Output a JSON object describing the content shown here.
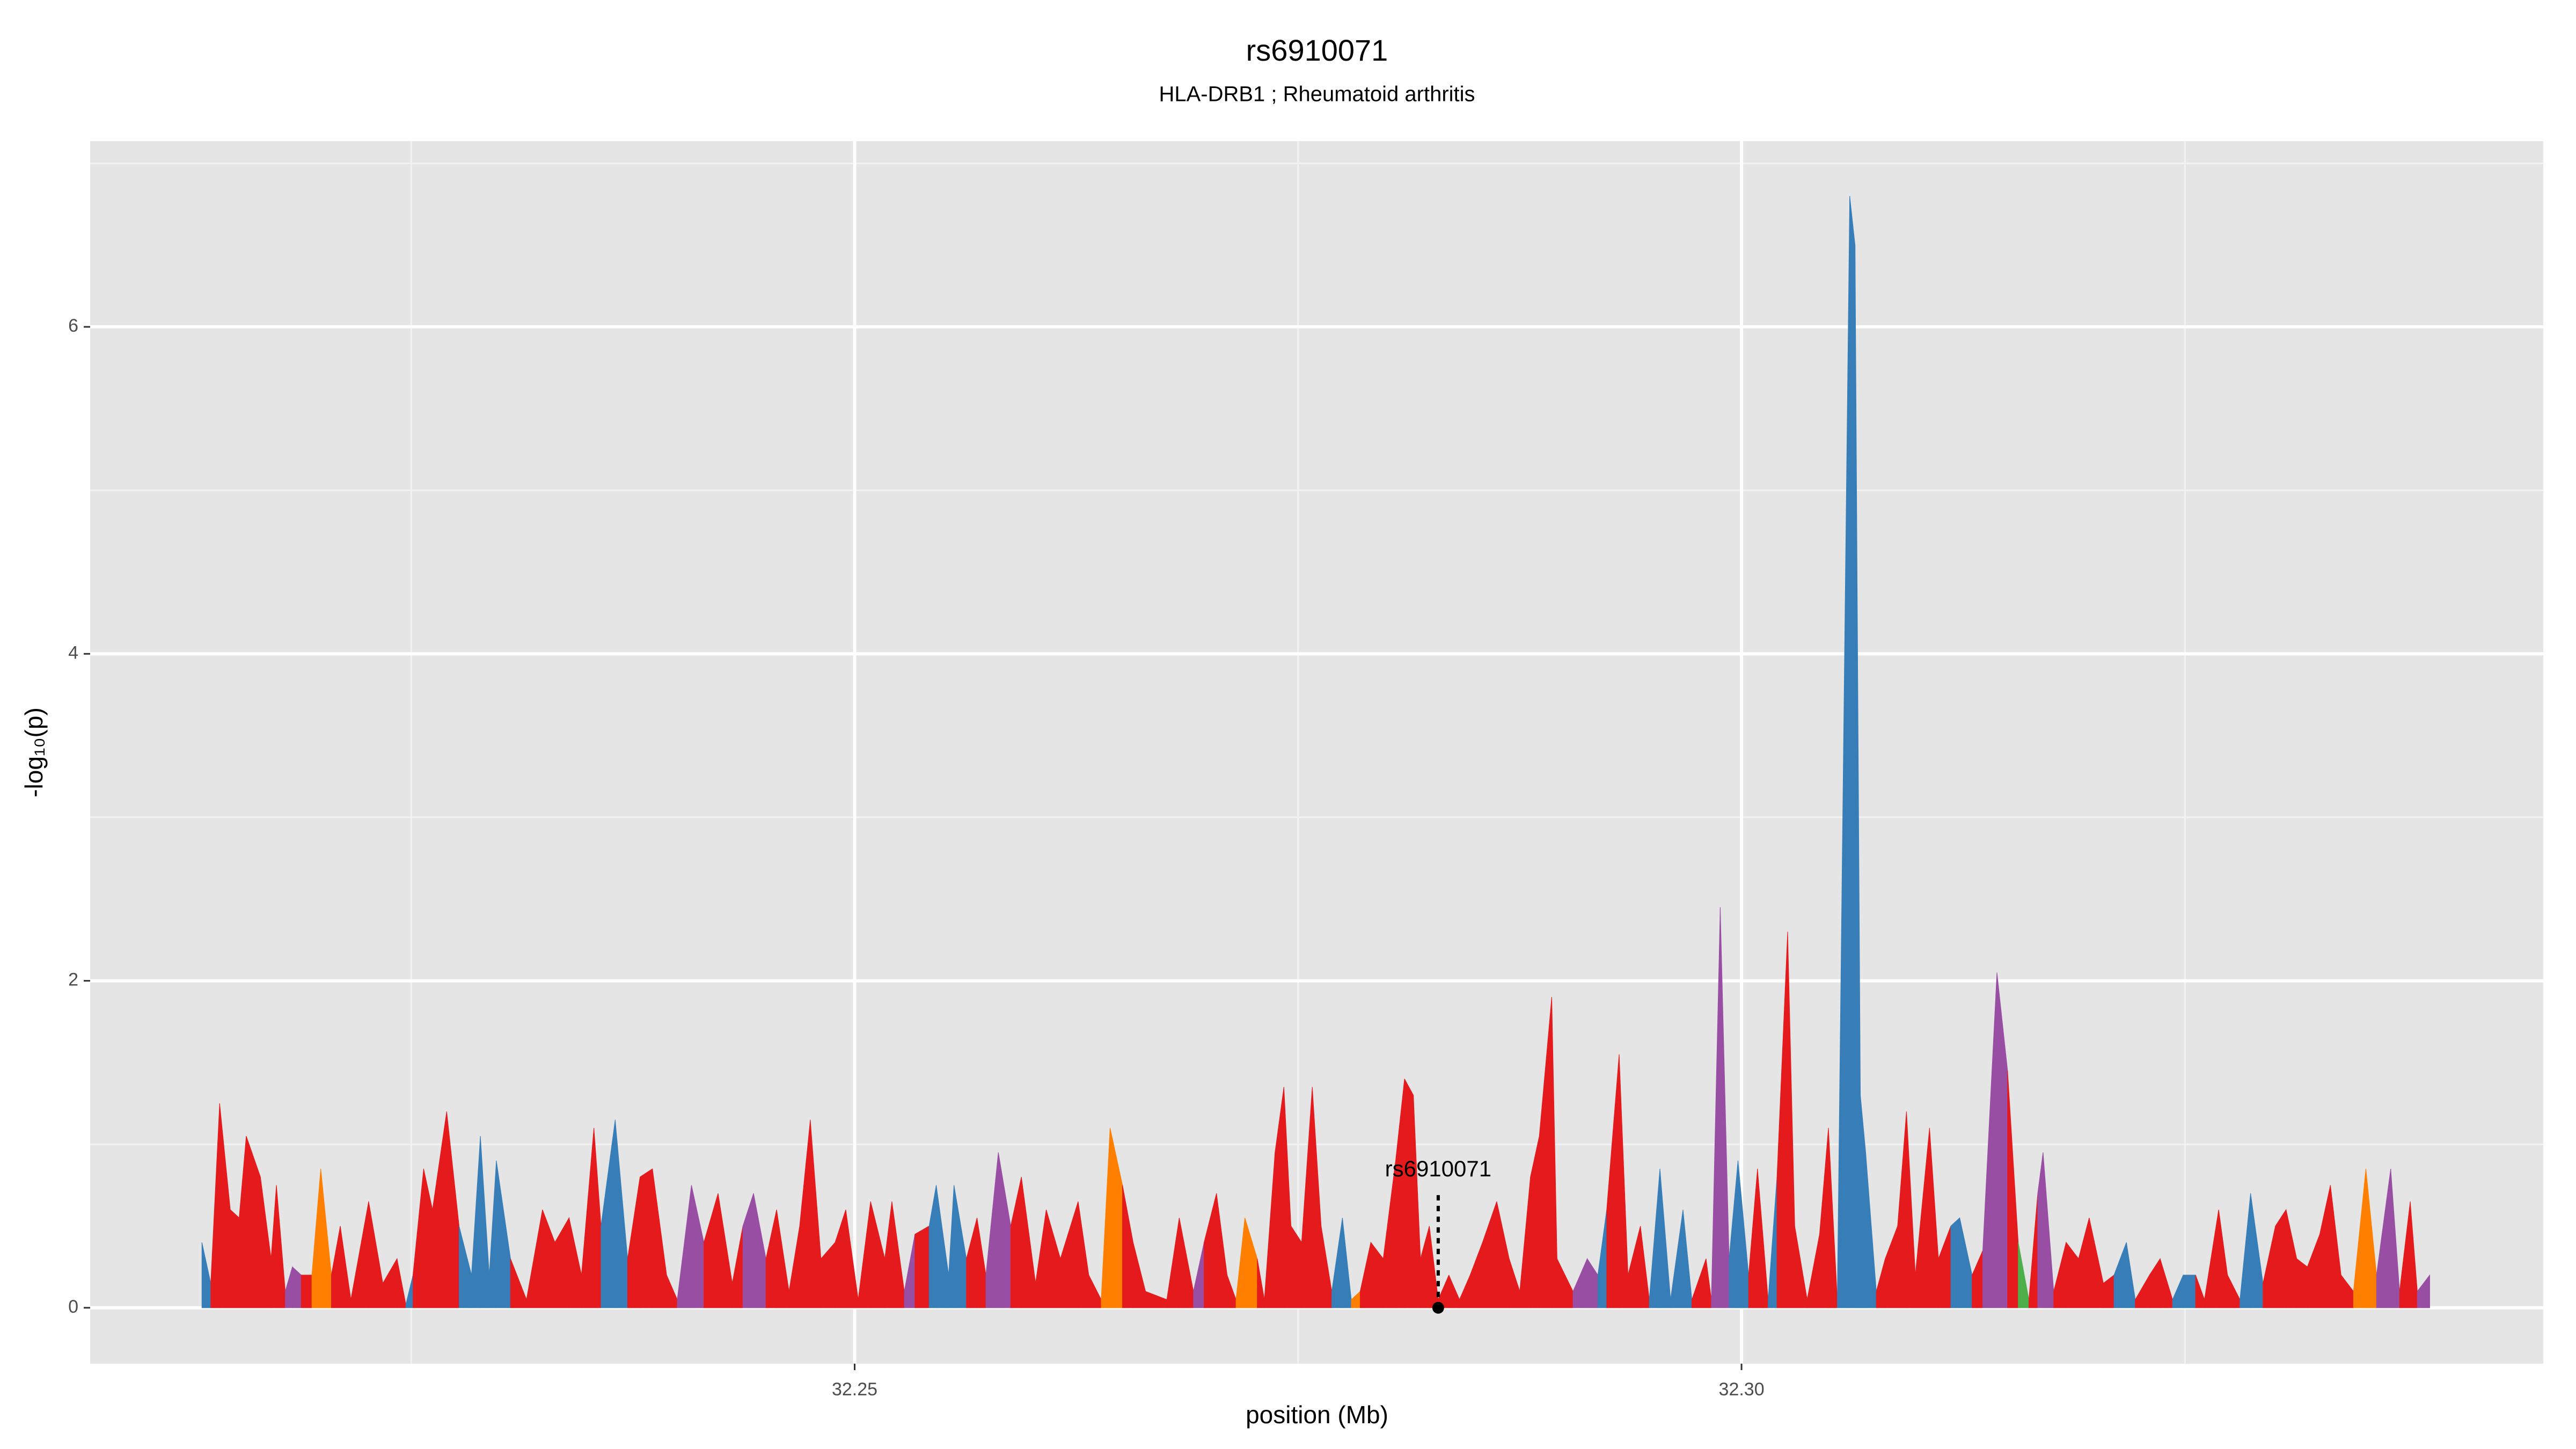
{
  "chart_data": {
    "type": "area",
    "title": "rs6910071",
    "subtitle": "HLA-DRB1 ; Rheumatoid arthritis",
    "xlabel": "position (Mb)",
    "ylabel": "-log₁₀(p)",
    "xlim": [
      32.2069,
      32.3452
    ],
    "ylim": [
      -0.342,
      7.136
    ],
    "xticks": [
      {
        "value": 32.25,
        "label": "32.25"
      },
      {
        "value": 32.3,
        "label": "32.30"
      }
    ],
    "yticks": [
      0,
      2,
      4,
      6
    ],
    "xminor": [
      32.225,
      32.275,
      32.325
    ],
    "yminor": [
      1,
      3,
      5,
      7
    ],
    "grid": true,
    "palette": {
      "r": "#e41a1c",
      "b": "#377eb8",
      "p": "#984ea3",
      "o": "#ff7f00",
      "g": "#4daf4a"
    },
    "x": [
      32.2132,
      32.2137,
      32.2142,
      32.2148,
      32.2153,
      32.2157,
      32.2165,
      32.2171,
      32.2174,
      32.2179,
      32.2183,
      32.2188,
      32.2194,
      32.2199,
      32.2205,
      32.221,
      32.2216,
      32.2226,
      32.2234,
      32.2242,
      32.2247,
      32.2251,
      32.2257,
      32.2262,
      32.227,
      32.2277,
      32.2284,
      32.2289,
      32.2294,
      32.2298,
      32.2306,
      32.2315,
      32.2324,
      32.2331,
      32.2339,
      32.2346,
      32.2353,
      32.2357,
      32.2365,
      32.2372,
      32.2379,
      32.2386,
      32.2394,
      32.24,
      32.2408,
      32.2415,
      32.2423,
      32.2431,
      32.2437,
      32.2443,
      32.245,
      32.2456,
      32.2463,
      32.2469,
      32.2475,
      32.2481,
      32.2489,
      32.2495,
      32.2502,
      32.2509,
      32.2517,
      32.2521,
      32.2528,
      32.2534,
      32.2542,
      32.2546,
      32.2553,
      32.2556,
      32.2563,
      32.2569,
      32.2574,
      32.2581,
      32.2588,
      32.2594,
      32.2602,
      32.2608,
      32.2616,
      32.2626,
      32.2632,
      32.2639,
      32.2644,
      32.2651,
      32.2657,
      32.2664,
      32.2676,
      32.2683,
      32.2691,
      32.2697,
      32.2704,
      32.271,
      32.2715,
      32.272,
      32.2727,
      32.2731,
      32.2737,
      32.2742,
      32.2746,
      32.2752,
      32.2758,
      32.2763,
      32.2769,
      32.2775,
      32.278,
      32.2785,
      32.2791,
      32.2798,
      32.2805,
      32.281,
      32.2815,
      32.2819,
      32.2824,
      32.2829,
      32.2835,
      32.2841,
      32.2847,
      32.2854,
      32.2862,
      32.2869,
      32.2875,
      32.2881,
      32.2886,
      32.2893,
      32.2896,
      32.2905,
      32.2913,
      32.2919,
      32.2924,
      32.2931,
      32.2936,
      32.2943,
      32.2948,
      32.2954,
      32.296,
      32.2967,
      32.2972,
      32.298,
      32.2983,
      32.2988,
      32.2993,
      32.2998,
      32.3004,
      32.3009,
      32.3015,
      32.302,
      32.3026,
      32.303,
      32.3037,
      32.3044,
      32.3049,
      32.3054,
      32.3061,
      32.3064,
      32.3067,
      32.307,
      32.3076,
      32.3081,
      32.3088,
      32.3093,
      32.3098,
      32.3106,
      32.3111,
      32.3118,
      32.3123,
      32.313,
      32.3136,
      32.3144,
      32.315,
      32.3156,
      32.3162,
      32.3167,
      32.317,
      32.3176,
      32.3183,
      32.319,
      32.3196,
      32.3204,
      32.321,
      32.3217,
      32.3222,
      32.323,
      32.3236,
      32.3243,
      32.3249,
      32.3256,
      32.3261,
      32.3269,
      32.3274,
      32.3281,
      32.3287,
      32.3294,
      32.3301,
      32.3307,
      32.3313,
      32.3319,
      32.3326,
      32.3332,
      32.3338,
      32.3345,
      32.3352,
      32.3358,
      32.3366,
      32.3371,
      32.3377,
      32.3381,
      32.3388
    ],
    "values": [
      0.4,
      0.15,
      1.25,
      0.6,
      0.55,
      1.05,
      0.8,
      0.3,
      0.75,
      0.1,
      0.25,
      0.2,
      0.2,
      0.85,
      0.2,
      0.5,
      0.05,
      0.65,
      0.15,
      0.3,
      0.02,
      0.2,
      0.85,
      0.6,
      1.2,
      0.5,
      0.2,
      1.05,
      0.2,
      0.9,
      0.3,
      0.05,
      0.6,
      0.4,
      0.55,
      0.2,
      1.1,
      0.5,
      1.15,
      0.3,
      0.8,
      0.85,
      0.2,
      0.05,
      0.75,
      0.4,
      0.7,
      0.15,
      0.5,
      0.7,
      0.3,
      0.6,
      0.1,
      0.5,
      1.15,
      0.3,
      0.4,
      0.6,
      0.05,
      0.65,
      0.3,
      0.65,
      0.1,
      0.45,
      0.5,
      0.75,
      0.2,
      0.75,
      0.3,
      0.55,
      0.2,
      0.95,
      0.5,
      0.8,
      0.15,
      0.6,
      0.3,
      0.65,
      0.2,
      0.05,
      1.1,
      0.75,
      0.4,
      0.1,
      0.05,
      0.55,
      0.1,
      0.4,
      0.7,
      0.2,
      0.05,
      0.55,
      0.3,
      0.05,
      0.95,
      1.35,
      0.5,
      0.4,
      1.35,
      0.5,
      0.1,
      0.55,
      0.05,
      0.1,
      0.4,
      0.3,
      0.9,
      1.4,
      1.3,
      0.3,
      0.5,
      0.05,
      0.2,
      0.05,
      0.2,
      0.4,
      0.65,
      0.3,
      0.1,
      0.8,
      1.05,
      1.9,
      0.3,
      0.1,
      0.3,
      0.2,
      0.6,
      1.55,
      0.2,
      0.5,
      0.05,
      0.85,
      0.05,
      0.6,
      0.05,
      0.3,
      0.05,
      2.45,
      0.3,
      0.9,
      0.2,
      0.85,
      0.05,
      0.8,
      2.3,
      0.5,
      0.05,
      0.45,
      1.1,
      0.05,
      6.8,
      6.5,
      1.3,
      0.95,
      0.1,
      0.3,
      0.5,
      1.2,
      0.2,
      1.1,
      0.3,
      0.5,
      0.55,
      0.2,
      0.35,
      2.05,
      1.45,
      0.4,
      0.05,
      0.7,
      0.95,
      0.1,
      0.4,
      0.3,
      0.55,
      0.15,
      0.2,
      0.4,
      0.05,
      0.2,
      0.3,
      0.05,
      0.2,
      0.2,
      0.05,
      0.6,
      0.2,
      0.05,
      0.7,
      0.15,
      0.5,
      0.6,
      0.3,
      0.25,
      0.45,
      0.75,
      0.2,
      0.1,
      0.85,
      0.2,
      0.85,
      0.1,
      0.65,
      0.1,
      0.2
    ],
    "point_colors": [
      "b",
      "b",
      "r",
      "r",
      "r",
      "r",
      "r",
      "r",
      "r",
      "r",
      "p",
      "r",
      "b",
      "o",
      "r",
      "r",
      "r",
      "r",
      "r",
      "r",
      "r",
      "b",
      "r",
      "r",
      "r",
      "b",
      "r",
      "b",
      "r",
      "b",
      "r",
      "b",
      "r",
      "r",
      "r",
      "r",
      "r",
      "r",
      "b",
      "r",
      "r",
      "r",
      "r",
      "r",
      "p",
      "r",
      "r",
      "o",
      "r",
      "p",
      "r",
      "r",
      "r",
      "r",
      "r",
      "r",
      "r",
      "r",
      "r",
      "r",
      "r",
      "r",
      "b",
      "p",
      "r",
      "b",
      "r",
      "b",
      "r",
      "r",
      "r",
      "p",
      "r",
      "r",
      "r",
      "r",
      "r",
      "r",
      "r",
      "r",
      "o",
      "r",
      "r",
      "r",
      "r",
      "r",
      "b",
      "p",
      "r",
      "r",
      "r",
      "o",
      "r",
      "r",
      "r",
      "r",
      "r",
      "r",
      "r",
      "r",
      "r",
      "b",
      "r",
      "o",
      "r",
      "r",
      "r",
      "r",
      "r",
      "b",
      "r",
      "r",
      "r",
      "r",
      "r",
      "r",
      "r",
      "r",
      "r",
      "r",
      "r",
      "r",
      "r",
      "r",
      "p",
      "r",
      "b",
      "r",
      "r",
      "r",
      "r",
      "b",
      "r",
      "b",
      "b",
      "r",
      "o",
      "p",
      "r",
      "b",
      "r",
      "r",
      "r",
      "b",
      "r",
      "r",
      "r",
      "r",
      "r",
      "r",
      "b",
      "b",
      "b",
      "b",
      "r",
      "r",
      "r",
      "r",
      "r",
      "r",
      "r",
      "r",
      "b",
      "r",
      "r",
      "p",
      "r",
      "g",
      "r",
      "r",
      "p",
      "r",
      "r",
      "r",
      "r",
      "r",
      "r",
      "b",
      "r",
      "r",
      "r",
      "r",
      "b",
      "r",
      "r",
      "r",
      "r",
      "r",
      "b",
      "r",
      "r",
      "r",
      "r",
      "b",
      "r",
      "r",
      "r",
      "r",
      "o",
      "r",
      "p",
      "r",
      "r",
      "b",
      "p"
    ],
    "highlight": {
      "label": "rs6910071",
      "x": 32.2829,
      "y": 0,
      "line_top": 0.7,
      "label_y": 0.84
    }
  }
}
